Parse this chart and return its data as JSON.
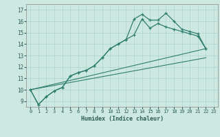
{
  "xlabel": "Humidex (Indice chaleur)",
  "bg_color": "#cce8e0",
  "grid_color": "#aad4cc",
  "line_color": "#2e7d6e",
  "xlim": [
    -0.5,
    23.5
  ],
  "ylim": [
    8.5,
    17.5
  ],
  "xticks": [
    0,
    1,
    2,
    3,
    4,
    5,
    6,
    7,
    8,
    9,
    10,
    11,
    12,
    13,
    14,
    15,
    16,
    17,
    18,
    19,
    20,
    21,
    22,
    23
  ],
  "yticks": [
    9,
    10,
    11,
    12,
    13,
    14,
    15,
    16,
    17
  ],
  "line1_x": [
    0,
    1,
    2,
    3,
    4,
    5,
    6,
    7,
    8,
    9,
    10,
    11,
    12,
    13,
    14,
    15,
    16,
    17,
    18,
    19,
    20,
    21,
    22
  ],
  "line1_y": [
    10.0,
    8.7,
    9.4,
    9.9,
    10.2,
    11.2,
    11.5,
    11.7,
    12.1,
    12.8,
    13.6,
    14.0,
    14.4,
    16.2,
    16.6,
    16.1,
    16.1,
    16.7,
    16.0,
    15.3,
    15.1,
    14.9,
    13.6
  ],
  "line2_x": [
    0,
    1,
    2,
    3,
    4,
    5,
    6,
    7,
    8,
    9,
    10,
    11,
    12,
    13,
    14,
    15,
    16,
    17,
    18,
    19,
    20,
    21,
    22
  ],
  "line2_y": [
    10.0,
    8.7,
    9.4,
    9.9,
    10.2,
    11.2,
    11.5,
    11.7,
    12.1,
    12.8,
    13.6,
    14.0,
    14.4,
    14.8,
    16.2,
    15.4,
    15.8,
    15.5,
    15.3,
    15.1,
    14.9,
    14.7,
    13.6
  ],
  "line3_x": [
    0,
    22
  ],
  "line3_y": [
    10.0,
    13.6
  ],
  "line4_x": [
    0,
    22
  ],
  "line4_y": [
    10.0,
    12.8
  ]
}
